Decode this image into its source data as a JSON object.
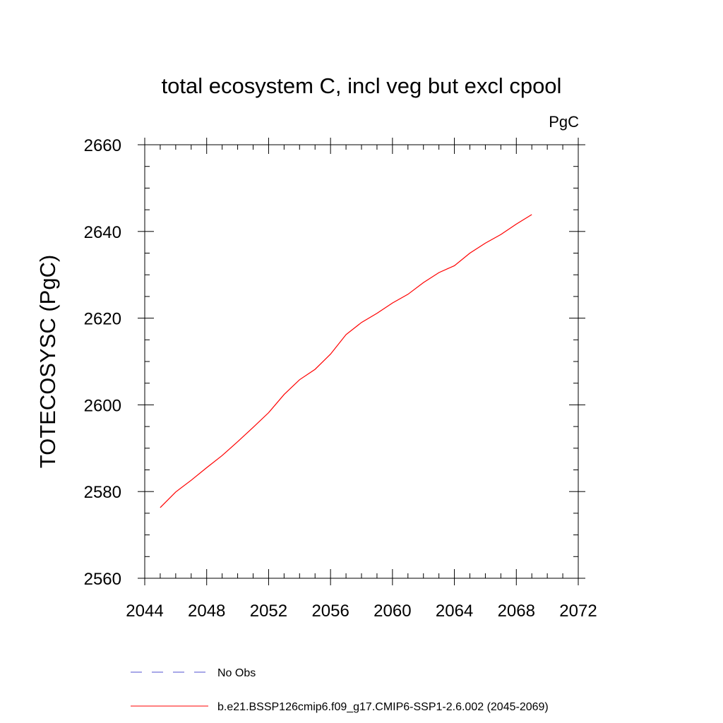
{
  "chart_data": {
    "type": "line",
    "title": "total ecosystem C, incl veg but excl cpool",
    "units": "PgC",
    "xlabel": "",
    "ylabel": "TOTECOSYSC  (PgC)",
    "xlim": [
      2044,
      2072
    ],
    "ylim": [
      2560,
      2660
    ],
    "xticks": [
      "2044",
      "2048",
      "2052",
      "2056",
      "2060",
      "2064",
      "2068",
      "2072"
    ],
    "yticks": [
      "2560",
      "2580",
      "2600",
      "2620",
      "2640",
      "2660"
    ],
    "grid": false,
    "legend_position": "bottom",
    "series": [
      {
        "name": "b.e21.BSSP126cmip6.f09_g17.CMIP6-SSP1-2.6.002 (2045-2069)",
        "color": "#ff0000",
        "dash": "solid",
        "x": [
          2045,
          2046,
          2047,
          2048,
          2049,
          2050,
          2051,
          2052,
          2053,
          2054,
          2055,
          2056,
          2057,
          2058,
          2059,
          2060,
          2061,
          2062,
          2063,
          2064,
          2065,
          2066,
          2067,
          2068,
          2069
        ],
        "y": [
          2576.3,
          2579.9,
          2582.6,
          2585.5,
          2588.3,
          2591.5,
          2594.8,
          2598.2,
          2602.4,
          2605.8,
          2608.2,
          2611.7,
          2616.2,
          2619.0,
          2621.1,
          2623.5,
          2625.5,
          2628.2,
          2630.5,
          2632.1,
          2635.0,
          2637.3,
          2639.3,
          2641.7,
          2643.9
        ]
      }
    ],
    "legend": [
      {
        "label": "No Obs",
        "color": "#5050d0",
        "dash": "dashed"
      },
      {
        "label": "b.e21.BSSP126cmip6.f09_g17.CMIP6-SSP1-2.6.002 (2045-2069)",
        "color": "#ff0000",
        "dash": "solid"
      }
    ]
  }
}
